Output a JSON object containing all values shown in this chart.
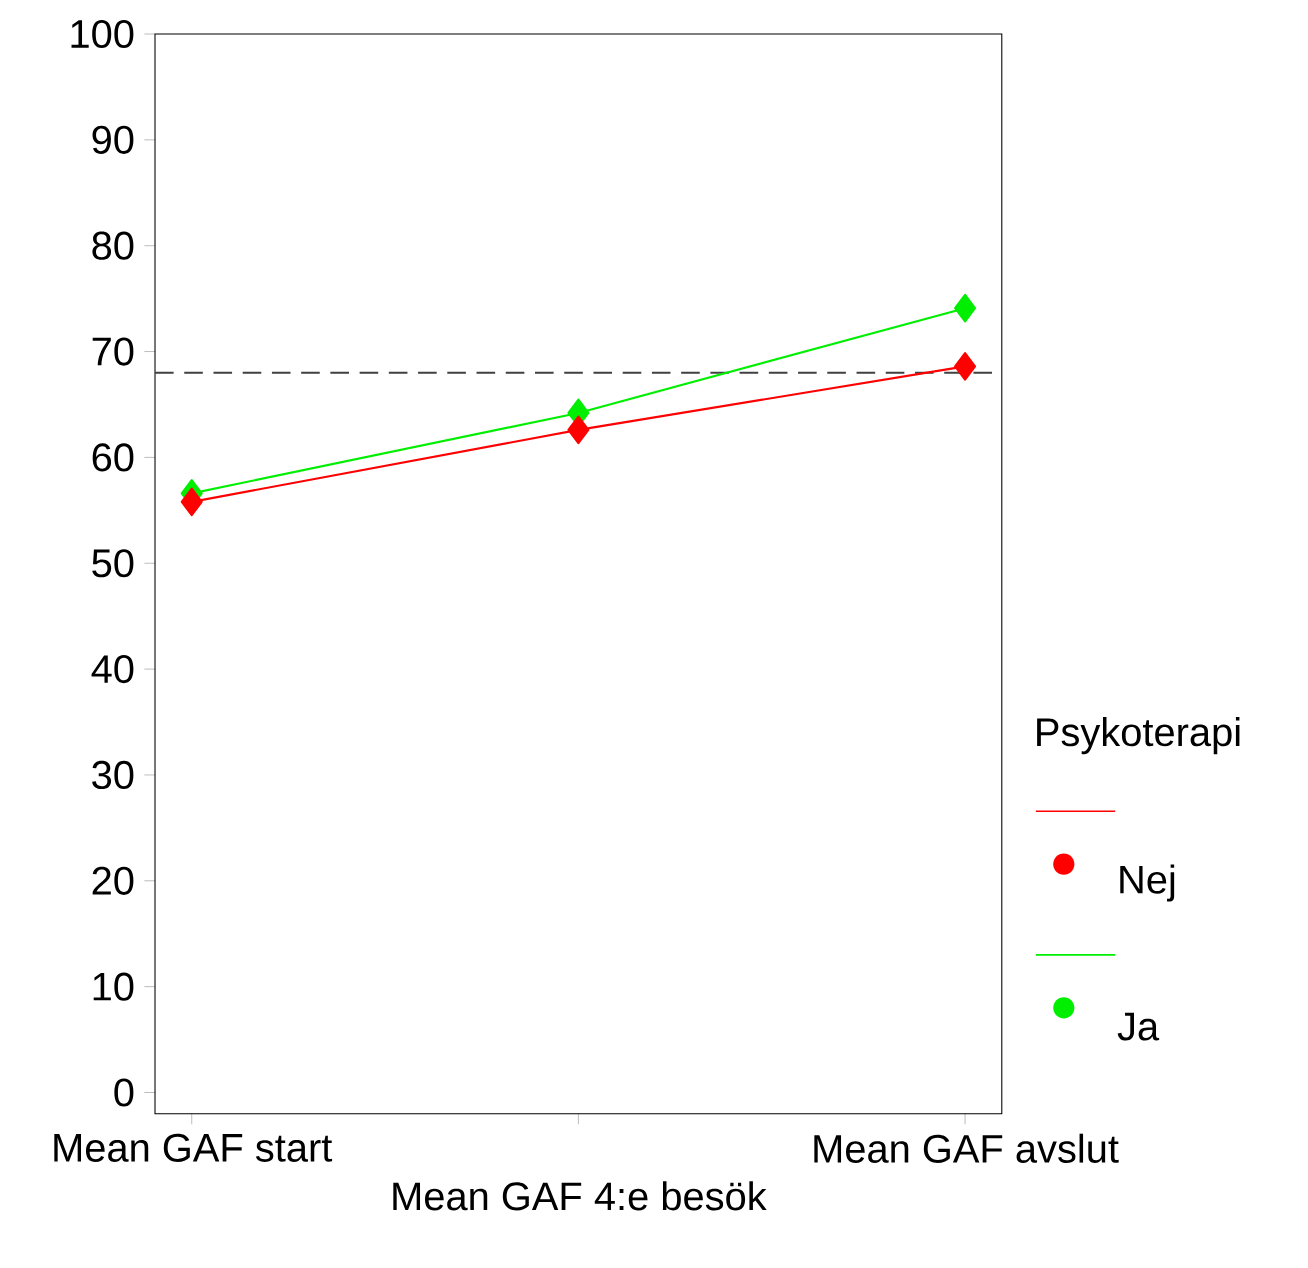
{
  "chart_data": {
    "type": "line",
    "xlabel": "Mean GAF 4:e besök",
    "legend_title": "Psykoterapi",
    "categories": [
      "Mean GAF start",
      null,
      "Mean GAF avslut"
    ],
    "series": [
      {
        "name": "Nej",
        "color": "#ff0000",
        "values": [
          55.8,
          62.6,
          68.6
        ]
      },
      {
        "name": "Ja",
        "color": "#00ee00",
        "values": [
          56.6,
          64.2,
          74.1
        ]
      }
    ],
    "ylim": [
      -2,
      100
    ],
    "yticks": [
      0,
      10,
      20,
      30,
      40,
      50,
      60,
      70,
      80,
      90,
      100
    ],
    "ref_lines": [
      {
        "axis": "y",
        "value": 68,
        "color": "#404040",
        "line_style": "dashed"
      }
    ],
    "marker": "diamond",
    "legend": "right",
    "grid": false
  }
}
